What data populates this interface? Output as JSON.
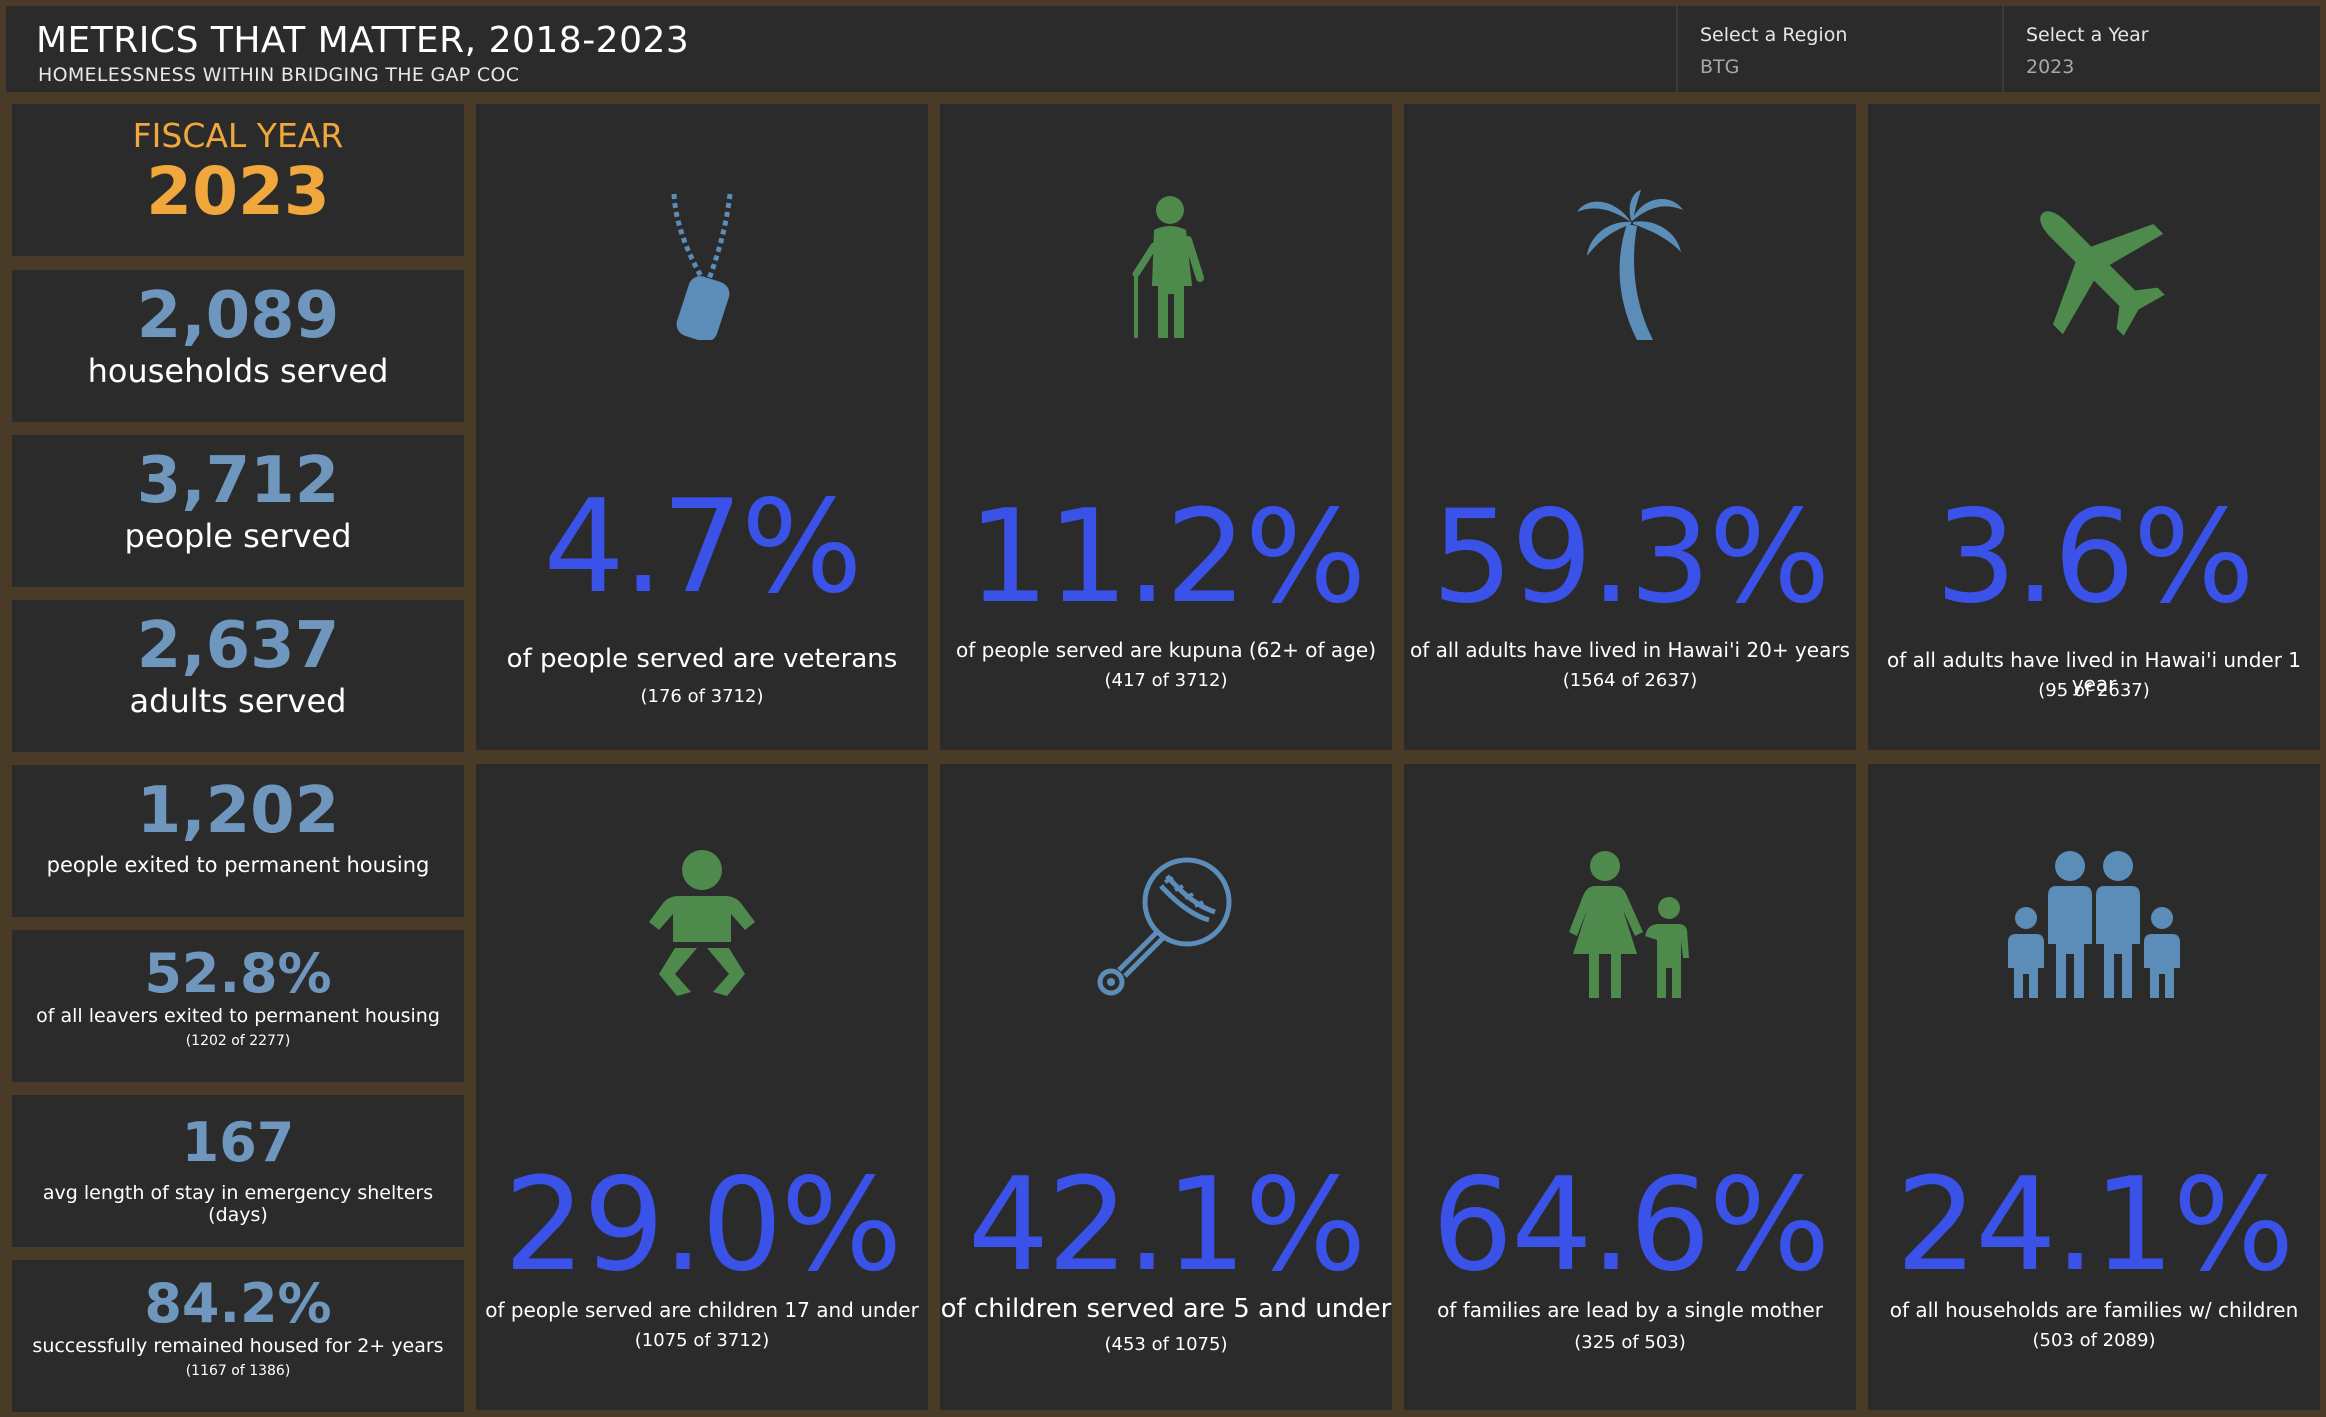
{
  "header": {
    "title": "METRICS THAT MATTER, 2018-2023",
    "subtitle": "HOMELESSNESS WITHIN BRIDGING THE GAP COC",
    "region": {
      "label": "Select a Region",
      "value": "BTG"
    },
    "year": {
      "label": "Select a Year",
      "value": "2023"
    }
  },
  "fiscal": {
    "label": "FISCAL YEAR",
    "year": "2023"
  },
  "stats": {
    "households": {
      "value": "2,089",
      "label": "households served"
    },
    "people": {
      "value": "3,712",
      "label": "people served"
    },
    "adults": {
      "value": "2,637",
      "label": "adults served"
    },
    "exited": {
      "value": "1,202",
      "label": "people exited to permanent housing"
    },
    "leavers": {
      "value": "52.8%",
      "label": "of all leavers exited to permanent housing",
      "detail": "(1202 of 2277)"
    },
    "stay": {
      "value": "167",
      "label": "avg length of stay in emergency shelters (days)"
    },
    "remained": {
      "value": "84.2%",
      "label": "successfully remained housed for 2+ years",
      "detail": "(1167 of 1386)"
    }
  },
  "cards": [
    {
      "pct": "4.7%",
      "label": "of people served are veterans",
      "detail": "(176 of 3712)",
      "icon": "dog-tag-icon",
      "color": "#5b8db8"
    },
    {
      "pct": "11.2%",
      "label": "of people served are kupuna (62+ of age)",
      "detail": "(417 of 3712)",
      "icon": "elder-icon",
      "color": "#4e8a4c"
    },
    {
      "pct": "59.3%",
      "label": "of all adults have lived in Hawai'i 20+ years",
      "detail": "(1564 of 2637)",
      "icon": "palm-tree-icon",
      "color": "#5b8db8"
    },
    {
      "pct": "3.6%",
      "label": "of all adults have lived in Hawai'i under 1 year",
      "detail": "(95 of 2637)",
      "icon": "airplane-icon",
      "color": "#4e8a4c"
    },
    {
      "pct": "29.0%",
      "label": "of people served are children 17 and under",
      "detail": "(1075 of 3712)",
      "icon": "baby-icon",
      "color": "#4e8a4c"
    },
    {
      "pct": "42.1%",
      "label": "of children served are 5 and under",
      "detail": "(453 of 1075)",
      "icon": "rattle-icon",
      "color": "#5b8db8"
    },
    {
      "pct": "64.6%",
      "label": "of families are lead by a single mother",
      "detail": "(325 of 503)",
      "icon": "mother-child-icon",
      "color": "#4e8a4c"
    },
    {
      "pct": "24.1%",
      "label": "of all households are families w/ children",
      "detail": "(503 of 2089)",
      "icon": "family-icon",
      "color": "#5b8db8"
    }
  ]
}
